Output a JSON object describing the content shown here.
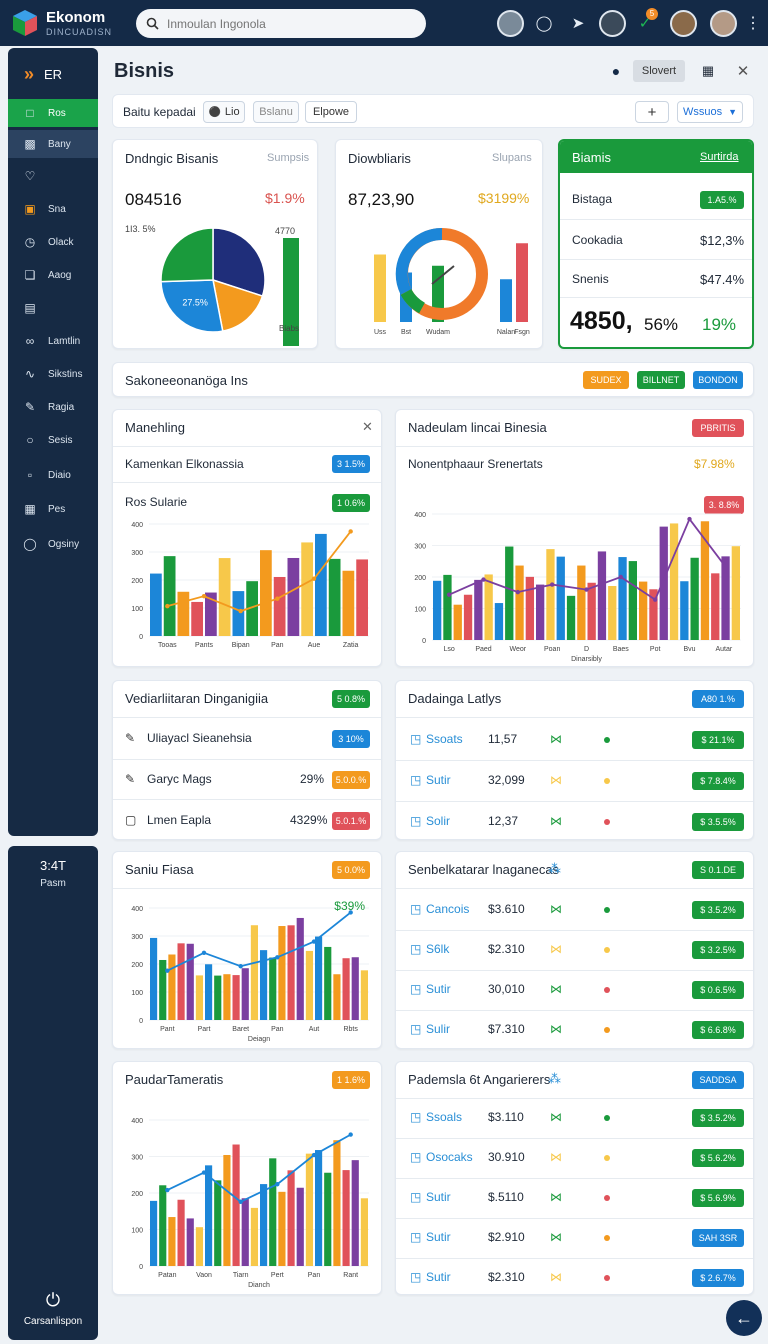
{
  "app": {
    "name": "Ekonom",
    "subtitle": "DINCUADISN"
  },
  "search": {
    "placeholder": "Inmoulan Ingonola"
  },
  "colors": {
    "sidebar": "#162a44",
    "topbar": "#142a47",
    "green": "#1a9a3c",
    "blue": "#1c86d8",
    "orange": "#f39a1e",
    "red": "#e0525a",
    "navy": "#1f2e7a"
  },
  "topbar_icons": [
    "user-icon",
    "chat-icon",
    "rocket-icon",
    "user-icon",
    "check-icon"
  ],
  "topbar_badge": "5",
  "sidebar": {
    "title": "ER",
    "items": [
      {
        "label": "Ros",
        "icon": "square-icon"
      },
      {
        "label": "Bany",
        "icon": "monitor-icon"
      },
      {
        "label": "",
        "icon": "heart-icon"
      },
      {
        "label": "Sna",
        "icon": "calendar-icon"
      },
      {
        "label": "Olack",
        "icon": "clock-icon"
      },
      {
        "label": "Aaog",
        "icon": "box-icon"
      },
      {
        "label": "",
        "icon": "document-icon"
      },
      {
        "label": "Lamtlin",
        "icon": "link-icon"
      },
      {
        "label": "Sikstins",
        "icon": "signal-icon"
      },
      {
        "label": "Ragia",
        "icon": "pen-icon"
      },
      {
        "label": "Sesis",
        "icon": "circle-icon"
      },
      {
        "label": "Diaio",
        "icon": "save-icon"
      },
      {
        "label": "Pes",
        "icon": "grid-icon"
      },
      {
        "label": "Ogsiny",
        "icon": "circle-icon"
      }
    ],
    "bottom_value": "3:4T",
    "bottom_label": "Pasm",
    "footer": "Carsanlispon"
  },
  "header": {
    "title": "Bisnis",
    "button": "Slovert"
  },
  "filter": {
    "label": "Baitu kepadai",
    "chip1": "Lio",
    "chip2": "Bslanu",
    "chip3": "Elpowe",
    "add": "+",
    "select": "Wssuos"
  },
  "card1": {
    "title": "Dndngic Bisanis",
    "sub": "Sumpsis",
    "value": "084516",
    "pct": "$1.9%",
    "left_label": "1I3. 5%",
    "pie_label": "27.5%",
    "bar_top": "4770",
    "bar_label": "Biabs"
  },
  "card2": {
    "title": "Diowbliaris",
    "sub": "Slupans",
    "value": "87,23,90",
    "pct": "$3199%"
  },
  "card3": {
    "header": "Biamis",
    "link": "Surtirda",
    "rows": [
      {
        "label": "Bistaga",
        "val": "1.A5.%"
      },
      {
        "label": "Cookadia",
        "val": "$12,3%"
      },
      {
        "label": "Snenis",
        "val": "$47.4%"
      }
    ],
    "big": "4850,",
    "big_pct": "56%",
    "big_pct2": "19%"
  },
  "banner": {
    "title": "Sakoneeonanöga Ins",
    "b1": "SUDEX",
    "b2": "BILLNET",
    "b3": "BONDON"
  },
  "card4": {
    "title": "Manehling",
    "row": "Kamenkan Elkonassia",
    "row_pill": "3 1.5%",
    "chart_title": "Ros Sularie",
    "chart_pill": "1 0.6%"
  },
  "card5": {
    "title": "Nadeulam lincai Binesia",
    "badge": "PBRITIS",
    "row": "Nonentphaaur Srenertats",
    "row_val": "$7.98%",
    "chart_pill": "3. 8.8%",
    "legend": "Dinarsibly"
  },
  "card6": {
    "title": "Vediarliitaran Dinganigiia",
    "pill": "5 0.8%",
    "rows": [
      {
        "label": "Uliayacl Sieanehsia",
        "val": "",
        "pill": "3 10%"
      },
      {
        "label": "Garyc Mags",
        "val": "29%",
        "pill": "5.0.0.%"
      },
      {
        "label": "Lmen Eapla",
        "val": "4329%",
        "pill": "5.0.1.%"
      }
    ]
  },
  "card7": {
    "title": "Dadainga Latlys",
    "pill": "A80 1.%",
    "rows": [
      {
        "name": "Ssoats",
        "num": "11,57",
        "pill": "$ 21.1%"
      },
      {
        "name": "Sutir",
        "num": "32,099",
        "pill": "$ 7.8.4%"
      },
      {
        "name": "Solir",
        "num": "12,37",
        "pill": "$ 3.5.5%"
      }
    ]
  },
  "card8": {
    "title": "Saniu Fiasa",
    "pill": "5 0.0%",
    "peak": "$39%",
    "legend": "Deiagn"
  },
  "card9": {
    "title": "Senbelkatarar lnaganecas",
    "pill": "S 0.1.DE",
    "rows": [
      {
        "name": "Cancois",
        "num": "$3.610",
        "pill": "$ 3.5.2%"
      },
      {
        "name": "S6lk",
        "num": "$2.310",
        "pill": "$ 3.2.5%"
      },
      {
        "name": "Sutir",
        "num": "30,010",
        "pill": "$ 0.6.5%"
      },
      {
        "name": "Sulir",
        "num": "$7.310",
        "pill": "$ 6.6.8%"
      }
    ]
  },
  "card10": {
    "title": "PaudarTameratis",
    "pill": "1 1.6%",
    "legend": "Dianch"
  },
  "card11": {
    "title": "Pademsla 6t Angarierers",
    "pill": "SADDSA",
    "rows": [
      {
        "name": "Ssoals",
        "num": "$3.110",
        "pill": "$ 3.5.2%",
        "c": "g"
      },
      {
        "name": "Osocaks",
        "num": "30.910",
        "pill": "$ 5.6.2%",
        "c": "g"
      },
      {
        "name": "Sutir",
        "num": "$.5110",
        "pill": "$ 5.6.9%",
        "c": "g"
      },
      {
        "name": "Sutir",
        "num": "$2.910",
        "pill": "SAH 3SR",
        "c": "b"
      },
      {
        "name": "Sutir",
        "num": "$2.310",
        "pill": "$ 2.6.7%",
        "c": "b"
      }
    ]
  },
  "chart_data": [
    {
      "type": "pie",
      "name": "Dndngic Bisanis",
      "values": [
        30,
        17,
        27.5,
        25.5
      ],
      "labels": [
        "",
        "",
        "27.5%",
        ""
      ],
      "colors": [
        "#1f2e7a",
        "#f39a1e",
        "#1c86d8",
        "#1a9a3c"
      ]
    },
    {
      "type": "bar",
      "name": "Diowbliaris",
      "categories": [
        "Uss",
        "Bst",
        "Wudam",
        "Nalan",
        "Fsgn"
      ],
      "values": [
        3000,
        2200,
        2500,
        1900,
        3500
      ],
      "colors": [
        "#f7c84a",
        "#1c86d8",
        "#1a9a3c",
        "#1c86d8",
        "#e0525a"
      ],
      "ylim": [
        0,
        4000
      ]
    },
    {
      "type": "bar",
      "name": "Ros Sularie",
      "x": [
        "Tooas",
        "Pants",
        "Bipan",
        "Pan",
        "Aue",
        "Zatia"
      ],
      "series": [
        {
          "values": [
            10,
            12,
            9,
            8,
            18,
            38
          ]
        }
      ],
      "line": [
        12,
        16,
        10,
        15,
        23,
        42
      ],
      "ylim": [
        0,
        45
      ]
    },
    {
      "type": "bar",
      "name": "Nadeulam lincai Binesia",
      "x": [
        "Lso",
        "Paed",
        "Weor",
        "Poan",
        "D",
        "Baes",
        "Pot",
        "Bvu",
        "Autar"
      ],
      "line": [
        18,
        24,
        19,
        22,
        20,
        25,
        16,
        48,
        30
      ],
      "ylim": [
        0,
        50
      ]
    },
    {
      "type": "bar",
      "name": "Saniu Fiasa",
      "x": [
        "Pant",
        "Part",
        "Baret",
        "Pan",
        "Aut",
        "Rbts"
      ],
      "line": [
        22,
        30,
        24,
        28,
        35,
        48
      ],
      "ylim": [
        0,
        50
      ]
    },
    {
      "type": "bar",
      "name": "PaudarTameratis",
      "x": [
        "Patan",
        "Vaon",
        "Tiarn",
        "Pert",
        "Pan",
        "Rant"
      ],
      "line": [
        26,
        32,
        22,
        28,
        38,
        45
      ],
      "ylim": [
        0,
        50
      ]
    }
  ]
}
